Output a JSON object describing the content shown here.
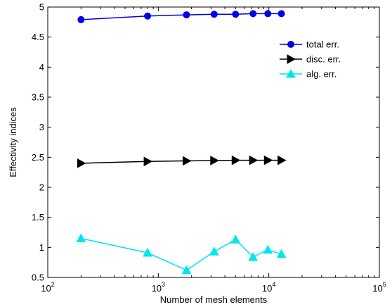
{
  "chart_data": {
    "type": "line",
    "xlabel": "Number of mesh elements",
    "ylabel": "Effectivity indices",
    "xscale": "log",
    "xlim": [
      100,
      100000
    ],
    "ylim": [
      0.5,
      5
    ],
    "grid": false,
    "legend_position": "top-right",
    "x_ticks": [
      {
        "value": 100,
        "base": "10",
        "exp": "2"
      },
      {
        "value": 1000,
        "base": "10",
        "exp": "3"
      },
      {
        "value": 10000,
        "base": "10",
        "exp": "4"
      },
      {
        "value": 100000,
        "base": "10",
        "exp": "5"
      }
    ],
    "y_ticks": [
      {
        "value": 0.5,
        "label": "0.5"
      },
      {
        "value": 1,
        "label": "1"
      },
      {
        "value": 1.5,
        "label": "1.5"
      },
      {
        "value": 2,
        "label": "2"
      },
      {
        "value": 2.5,
        "label": "2.5"
      },
      {
        "value": 3,
        "label": "3"
      },
      {
        "value": 3.5,
        "label": "3.5"
      },
      {
        "value": 4,
        "label": "4"
      },
      {
        "value": 4.5,
        "label": "4.5"
      },
      {
        "value": 5,
        "label": "5"
      }
    ],
    "series": [
      {
        "name": "total err.",
        "color": "#0000e6",
        "marker": "circle",
        "points": [
          [
            200,
            4.79
          ],
          [
            800,
            4.85
          ],
          [
            1800,
            4.87
          ],
          [
            3200,
            4.88
          ],
          [
            5000,
            4.88
          ],
          [
            7200,
            4.89
          ],
          [
            9800,
            4.89
          ],
          [
            13000,
            4.89
          ]
        ]
      },
      {
        "name": "disc. err.",
        "color": "#000000",
        "marker": "triangle-right",
        "points": [
          [
            200,
            2.4
          ],
          [
            800,
            2.43
          ],
          [
            1800,
            2.44
          ],
          [
            3200,
            2.445
          ],
          [
            5000,
            2.45
          ],
          [
            7200,
            2.45
          ],
          [
            9800,
            2.45
          ],
          [
            13000,
            2.45
          ]
        ]
      },
      {
        "name": "alg. err.",
        "color": "#00e5ee",
        "marker": "triangle-up",
        "points": [
          [
            200,
            1.15
          ],
          [
            800,
            0.91
          ],
          [
            1800,
            0.62
          ],
          [
            3200,
            0.93
          ],
          [
            5000,
            1.13
          ],
          [
            7200,
            0.84
          ],
          [
            9800,
            0.96
          ],
          [
            13000,
            0.89
          ]
        ]
      }
    ]
  }
}
